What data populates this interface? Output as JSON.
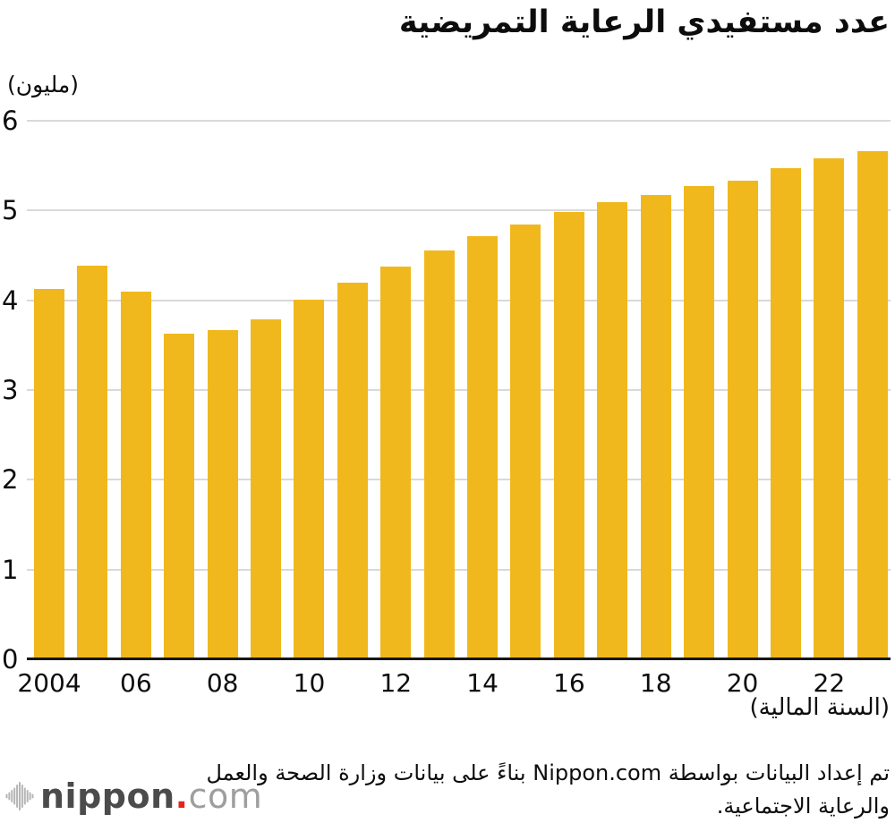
{
  "title": "عدد مستفيدي الرعاية التمريضية",
  "y_axis": {
    "unit_label": "(مليون)",
    "ticks": [
      "0",
      "1",
      "2",
      "3",
      "4",
      "5",
      "6"
    ]
  },
  "x_axis": {
    "unit_label": "(السنة المالية)",
    "tick_labels": [
      "2004",
      "06",
      "08",
      "10",
      "12",
      "14",
      "16",
      "18",
      "20",
      "22"
    ]
  },
  "chart_data": {
    "type": "bar",
    "title": "عدد مستفيدي الرعاية التمريضية",
    "ylabel": "(مليون)",
    "xlabel": "(السنة المالية)",
    "categories": [
      "2004",
      "2005",
      "2006",
      "2007",
      "2008",
      "2009",
      "2010",
      "2011",
      "2012",
      "2013",
      "2014",
      "2015",
      "2016",
      "2017",
      "2018",
      "2019",
      "2020",
      "2021",
      "2022",
      "2023"
    ],
    "values": [
      4.13,
      4.39,
      4.1,
      3.63,
      3.67,
      3.79,
      4.01,
      4.2,
      4.38,
      4.55,
      4.71,
      4.84,
      4.98,
      5.09,
      5.17,
      5.27,
      5.33,
      5.47,
      5.58,
      5.66
    ],
    "ylim": [
      0,
      6
    ],
    "y_ticks": [
      0,
      1,
      2,
      3,
      4,
      5,
      6
    ],
    "grid": "horizontal",
    "legend": "none",
    "bar_color": "#F0B81C",
    "gridline_color": "#D9D9D9",
    "axis_color": "#161616"
  },
  "footer": {
    "caption_line1": "تم إعداد البيانات بواسطة Nippon.com بناءً على بيانات وزارة الصحة والعمل",
    "caption_line2": "والرعاية الاجتماعية.",
    "logo": {
      "brand": "nippon",
      "dot": ".",
      "tld": "com",
      "icon": "sound-wave-icon",
      "brand_color": "#4B4B4B",
      "dot_color": "#E3231E",
      "tld_color": "#9E9E9E",
      "icon_color": "#B5B5B5"
    }
  }
}
